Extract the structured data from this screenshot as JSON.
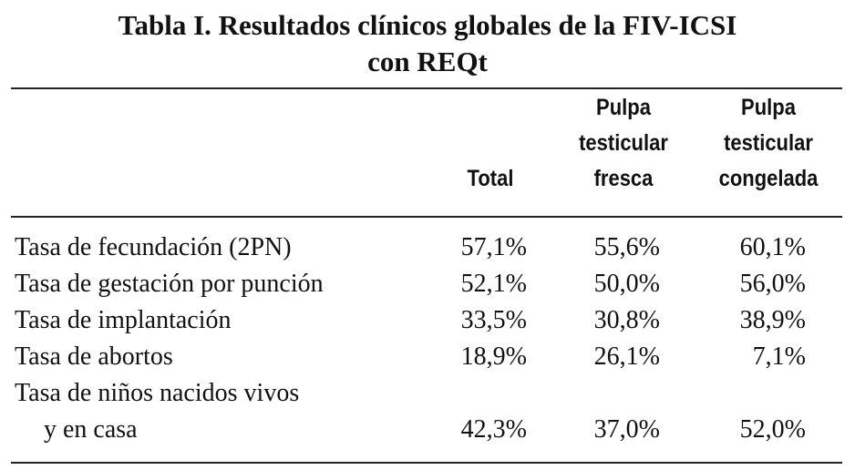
{
  "title": [
    "Tabla I. Resultados clínicos globales de la FIV-ICSI",
    "con REQt"
  ],
  "table": {
    "columns": [
      [
        "Total"
      ],
      [
        "Pulpa",
        "testicular",
        "fresca"
      ],
      [
        "Pulpa",
        "testicular",
        "congelada"
      ]
    ],
    "rows": [
      {
        "label": [
          "Tasa de fecundación (2PN)"
        ],
        "values": [
          "57,1%",
          "55,6%",
          "60,1%"
        ]
      },
      {
        "label": [
          "Tasa de gestación por punción"
        ],
        "values": [
          "52,1%",
          "50,0%",
          "56,0%"
        ]
      },
      {
        "label": [
          "Tasa de implantación"
        ],
        "values": [
          "33,5%",
          "30,8%",
          "38,9%"
        ]
      },
      {
        "label": [
          "Tasa de abortos"
        ],
        "values": [
          "18,9%",
          "26,1%",
          "7,1%"
        ]
      },
      {
        "label": [
          "Tasa de niños nacidos vivos",
          "y en casa"
        ],
        "values": [
          "42,3%",
          "37,0%",
          "52,0%"
        ]
      }
    ]
  }
}
